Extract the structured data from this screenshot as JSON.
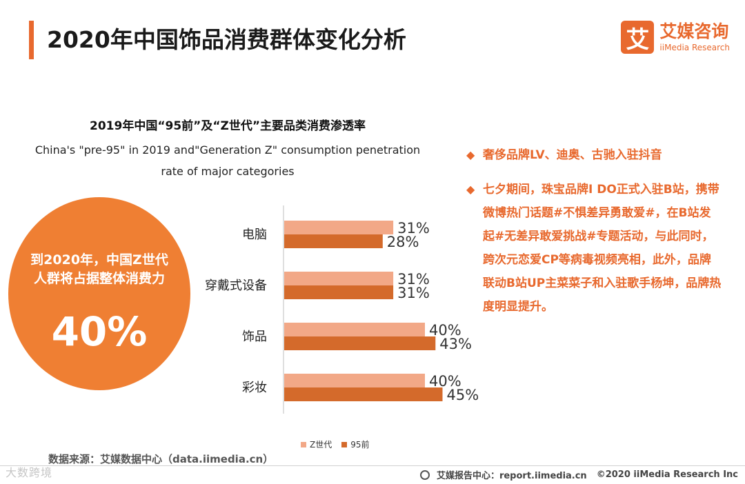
{
  "header": {
    "title": "2020年中国饰品消费群体变化分析",
    "brand_logo_glyph": "艾",
    "brand_cn": "艾媒咨询",
    "brand_en": "iiMedia Research",
    "accent_color": "#e8692e"
  },
  "circle": {
    "text": "到2020年，中国Z世代人群将占据整体消费力",
    "value": "40%",
    "color": "#ef7f33"
  },
  "chart_data": {
    "type": "bar",
    "orientation": "horizontal",
    "title": "2019年中国“95前”及“Z世代”主要品类消费渗透率",
    "subtitle_lines": [
      "China's \"pre-95\" in 2019 and\"Generation Z\" consumption penetration",
      "rate of major categories"
    ],
    "categories": [
      "电脑",
      "穿戴式设备",
      "饰品",
      "彩妆"
    ],
    "series": [
      {
        "name": "Z世代",
        "values": [
          31,
          31,
          40,
          40
        ],
        "labels": [
          "31%",
          "31%",
          "40%",
          "40%"
        ],
        "color": "#f2a887"
      },
      {
        "name": "95前",
        "values": [
          28,
          31,
          43,
          45
        ],
        "labels": [
          "28%",
          "31%",
          "43%",
          "45%"
        ],
        "color": "#d46a2b"
      }
    ],
    "xlim": [
      0,
      100
    ],
    "grid": false,
    "legend_position": "bottom"
  },
  "source": "数据来源：艾媒数据中心（data.iimedia.cn）",
  "bullets": [
    "奢侈品牌LV、迪奥、古驰入驻抖音",
    "七夕期间，珠宝品牌I DO正式入驻B站，携带微博热门话题#不惧差异勇敢爱#，在B站发起#无差异敢爱挑战#专题活动，与此同时，跨次元恋爱CP等病毒视频亮相，此外，品牌联动B站UP主菜菜子和入驻歌手杨坤，品牌热度明显提升。"
  ],
  "bullet_icon": "diamond-icon",
  "footer": {
    "report": "艾媒报告中心：report.iimedia.cn",
    "copyright": "©2020  iiMedia Research  Inc"
  },
  "watermark": "大数跨境"
}
